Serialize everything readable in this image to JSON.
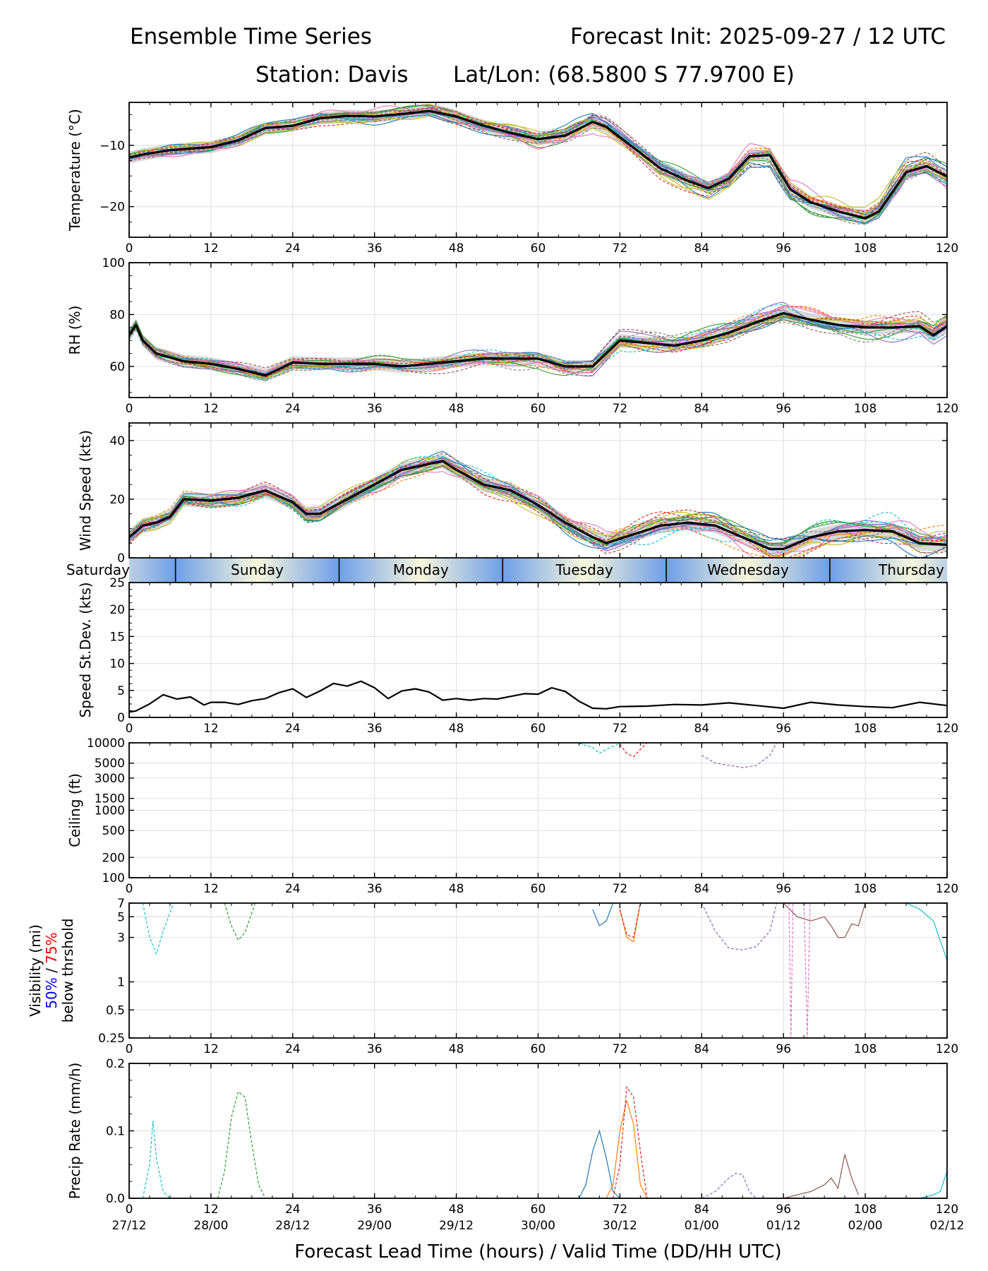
{
  "title": {
    "left": "Ensemble Time Series",
    "right": "Forecast Init: 2025-09-27 / 12 UTC",
    "station": "Station: Davis",
    "latlon": "Lat/Lon: (68.5800 S 77.9700 E)"
  },
  "colors": {
    "ensemble": [
      "#1f77b4",
      "#ff7f0e",
      "#2ca02c",
      "#d62728",
      "#9467bd",
      "#8c564b",
      "#e377c2",
      "#7f7f7f",
      "#bcbd22",
      "#17becf"
    ],
    "mean": "#000000",
    "spread": "#c8c8c8",
    "vis_p50": "#0000ff",
    "vis_p75": "#ff0000",
    "day_blue": "#6e9ee8",
    "day_cream": "#f7f6dc"
  },
  "shared_x": {
    "lim": [
      0,
      120
    ],
    "ticks": [
      0,
      12,
      24,
      36,
      48,
      60,
      72,
      84,
      96,
      108,
      120
    ],
    "tick_labels": [
      "0",
      "12",
      "24",
      "36",
      "48",
      "60",
      "72",
      "84",
      "96",
      "108",
      "120"
    ],
    "valid_time_labels": [
      "27/12",
      "28/00",
      "28/12",
      "29/00",
      "29/12",
      "30/00",
      "30/12",
      "01/00",
      "01/12",
      "02/00",
      "02/12"
    ],
    "xlabel": "Forecast Lead Time (hours) / Valid Time (DD/HH UTC)"
  },
  "day_band": {
    "days": [
      "Saturday",
      "Sunday",
      "Monday",
      "Tuesday",
      "Wednesday",
      "Thursday"
    ],
    "boundaries_hours": [
      6.8,
      30.8,
      54.8,
      78.8,
      102.8
    ]
  },
  "chart_data": [
    {
      "type": "line",
      "id": "temp",
      "ylabel": "Temperature (°C)",
      "ylim": [
        -25,
        -3
      ],
      "yticks": [
        -10,
        -20
      ],
      "ytick_labels": [
        "−10",
        "−20"
      ],
      "grid": true,
      "members": 20,
      "mean": {
        "x": [
          0,
          2,
          6,
          12,
          16,
          20,
          24,
          28,
          32,
          36,
          40,
          44,
          48,
          52,
          56,
          60,
          64,
          68,
          70,
          74,
          78,
          82,
          85,
          88,
          91,
          94,
          97,
          100,
          104,
          108,
          110,
          114,
          117,
          120
        ],
        "y": [
          -12,
          -11.5,
          -10.8,
          -10.3,
          -9.2,
          -7.2,
          -6.8,
          -5.6,
          -5.2,
          -5.3,
          -4.9,
          -4.4,
          -5.3,
          -6.8,
          -8.0,
          -9.0,
          -8.4,
          -6.2,
          -7.0,
          -10.4,
          -13.8,
          -15.8,
          -17.0,
          -15.4,
          -11.8,
          -11.6,
          -17.2,
          -19.3,
          -20.8,
          -21.9,
          -20.8,
          -14.4,
          -13.4,
          -15.1
        ]
      },
      "spread_width": 1.0
    },
    {
      "type": "line",
      "id": "rh",
      "ylabel": "RH (%)",
      "ylim": [
        48,
        100
      ],
      "yticks": [
        60,
        80,
        100
      ],
      "ytick_labels": [
        "60",
        "80",
        "100"
      ],
      "grid": true,
      "members": 20,
      "mean": {
        "x": [
          0,
          1,
          2,
          4,
          6,
          8,
          12,
          16,
          20,
          24,
          28,
          32,
          36,
          40,
          44,
          48,
          52,
          56,
          60,
          64,
          68,
          70,
          72,
          76,
          80,
          84,
          88,
          92,
          96,
          100,
          104,
          108,
          112,
          116,
          118,
          120
        ],
        "y": [
          72,
          76,
          70,
          65,
          63.5,
          62,
          61,
          59,
          56.5,
          61.5,
          61,
          61,
          61,
          60,
          61,
          62,
          63,
          63,
          63,
          60,
          60,
          65,
          70,
          69,
          68,
          70,
          73,
          77,
          80.5,
          78,
          76,
          75,
          75,
          75.5,
          72,
          75.5
        ]
      },
      "spread_width": 2.5
    },
    {
      "type": "line",
      "id": "wspd",
      "ylabel": "Wind Speed (kts)",
      "ylim": [
        0,
        46
      ],
      "yticks": [
        0,
        20,
        40
      ],
      "ytick_labels": [
        "0",
        "20",
        "40"
      ],
      "grid": true,
      "members": 20,
      "mean": {
        "x": [
          0,
          2,
          4,
          6,
          8,
          12,
          16,
          20,
          24,
          26,
          28,
          32,
          36,
          40,
          44,
          46,
          48,
          52,
          56,
          60,
          64,
          68,
          70,
          74,
          78,
          82,
          86,
          90,
          94,
          96,
          100,
          104,
          108,
          112,
          116,
          120
        ],
        "y": [
          7,
          11,
          12,
          14,
          20,
          19.5,
          20.5,
          23,
          19,
          15,
          15,
          20,
          25,
          30,
          32,
          33,
          30,
          25,
          23,
          18,
          12,
          7,
          5,
          8,
          11,
          12,
          11,
          7,
          3,
          3,
          7,
          9,
          9.5,
          9,
          5,
          4.5
        ]
      },
      "spread_width": 2.5
    },
    {
      "type": "line",
      "id": "sdev",
      "ylabel": "Speed St.Dev. (kts)",
      "ylim": [
        0,
        25
      ],
      "yticks": [
        0,
        5,
        10,
        15,
        20,
        25
      ],
      "ytick_labels": [
        "0",
        "5",
        "10",
        "15",
        "20",
        "25"
      ],
      "grid": true,
      "series": [
        {
          "name": "std",
          "x": [
            0,
            1,
            3,
            5,
            7,
            9,
            11,
            12,
            14,
            16,
            18,
            20,
            22,
            24,
            26,
            28,
            30,
            32,
            34,
            36,
            38,
            40,
            42,
            44,
            46,
            48,
            50,
            52,
            54,
            56,
            58,
            60,
            62,
            64,
            66,
            68,
            70,
            72,
            76,
            80,
            84,
            88,
            92,
            96,
            100,
            104,
            108,
            112,
            116,
            120
          ],
          "y": [
            1,
            1.2,
            2.5,
            4.2,
            3.4,
            3.8,
            2.3,
            2.8,
            2.8,
            2.4,
            3.1,
            3.5,
            4.6,
            5.3,
            3.7,
            4.9,
            6.3,
            5.8,
            6.7,
            5.5,
            3.5,
            4.9,
            5.3,
            4.7,
            3.2,
            3.5,
            3.2,
            3.5,
            3.4,
            3.9,
            4.4,
            4.3,
            5.5,
            4.8,
            3.0,
            1.7,
            1.6,
            2.0,
            2.1,
            2.4,
            2.3,
            2.7,
            2.2,
            1.7,
            2.8,
            2.3,
            2.0,
            1.8,
            2.8,
            2.2
          ]
        }
      ]
    },
    {
      "type": "line",
      "id": "ceil",
      "ylabel": "Ceiling (ft)",
      "yscale": "log",
      "ylim": [
        100,
        10000
      ],
      "yticks": [
        100,
        200,
        500,
        1000,
        1500,
        3000,
        5000,
        10000
      ],
      "ytick_labels": [
        "100",
        "200",
        "500",
        "1000",
        "1500",
        "3000",
        "5000",
        "10000"
      ],
      "grid": true,
      "segments": [
        {
          "x": [
            84,
            86,
            90,
            92,
            94,
            95
          ],
          "y": [
            6500,
            5000,
            4300,
            4600,
            6500,
            10000
          ],
          "dashed": true,
          "color": "#9467bd"
        },
        {
          "x": [
            72,
            73,
            74,
            75,
            76
          ],
          "y": [
            9500,
            7000,
            6200,
            8000,
            10000
          ],
          "dashed": true,
          "color": "#d62728"
        },
        {
          "x": [
            66,
            68,
            69,
            70,
            72
          ],
          "y": [
            9800,
            8500,
            7000,
            8000,
            9800
          ],
          "dashed": true,
          "color": "#17becf"
        }
      ]
    },
    {
      "type": "line",
      "id": "vis",
      "ylabel": "Visibility (mi)",
      "ylabel2_a": "50%",
      "ylabel2_sep": " / ",
      "ylabel2_b": "75%",
      "ylabel3": "below thrshold",
      "yscale": "log",
      "ylim": [
        0.25,
        7
      ],
      "yticks": [
        0.25,
        0.5,
        1,
        3,
        5,
        7
      ],
      "ytick_labels": [
        "0.25",
        "0.5",
        "1",
        "3",
        "5",
        "7"
      ],
      "grid": true,
      "segments": [
        {
          "x": [
            2,
            3,
            4,
            5,
            6.5
          ],
          "y": [
            7,
            3,
            2,
            3.5,
            7
          ],
          "dashed": true,
          "color": "#17becf"
        },
        {
          "x": [
            14,
            15,
            16,
            17,
            18.5
          ],
          "y": [
            7,
            4,
            2.8,
            3.4,
            7
          ],
          "dashed": true,
          "color": "#2ca02c"
        },
        {
          "x": [
            68,
            69,
            70,
            71
          ],
          "y": [
            6,
            4,
            4.5,
            7
          ],
          "dashed": false,
          "color": "#1f77b4"
        },
        {
          "x": [
            72,
            73,
            74,
            75
          ],
          "y": [
            6,
            3,
            2.7,
            7
          ],
          "dashed": false,
          "color": "#ff7f0e"
        },
        {
          "x": [
            72,
            73,
            74,
            75
          ],
          "y": [
            6,
            3.2,
            3,
            7
          ],
          "dashed": true,
          "color": "#d62728"
        },
        {
          "x": [
            84,
            86,
            88,
            90,
            92,
            94,
            95
          ],
          "y": [
            7,
            3.5,
            2.3,
            2.2,
            2.4,
            3.5,
            7
          ],
          "dashed": true,
          "color": "#9467bd"
        },
        {
          "x": [
            96,
            98,
            100,
            102,
            103,
            104,
            105,
            106,
            107,
            108
          ],
          "y": [
            7,
            5,
            4.5,
            5,
            4,
            3,
            3,
            4.2,
            4,
            7
          ],
          "dashed": false,
          "color": "#8c564b"
        },
        {
          "x": [
            96.8,
            97.1,
            97.4
          ],
          "y": [
            7,
            0.25,
            7
          ],
          "dashed": true,
          "color": "#e377c2"
        },
        {
          "x": [
            99,
            99.5,
            99.9
          ],
          "y": [
            7,
            0.25,
            7
          ],
          "dashed": true,
          "color": "#e377c2"
        },
        {
          "x": [
            114,
            116,
            118,
            120
          ],
          "y": [
            7,
            6,
            4.5,
            1.7
          ],
          "dashed": false,
          "color": "#17becf"
        }
      ]
    },
    {
      "type": "line",
      "id": "precip",
      "ylabel": "Precip Rate (mm/h)",
      "ylim": [
        0,
        0.2
      ],
      "yticks": [
        0,
        0.1,
        0.2
      ],
      "ytick_labels": [
        "0.0",
        "0.1",
        "0.2"
      ],
      "grid": true,
      "segments": [
        {
          "x": [
            2,
            3,
            3.5,
            4,
            5,
            6
          ],
          "y": [
            0,
            0.05,
            0.115,
            0.06,
            0.01,
            0
          ],
          "dashed": true,
          "color": "#17becf"
        },
        {
          "x": [
            13,
            14,
            15,
            16,
            17,
            18,
            19,
            20
          ],
          "y": [
            0,
            0.04,
            0.12,
            0.158,
            0.15,
            0.08,
            0.02,
            0
          ],
          "dashed": true,
          "color": "#2ca02c"
        },
        {
          "x": [
            66,
            67,
            68,
            69,
            70,
            71,
            72
          ],
          "y": [
            0,
            0.02,
            0.07,
            0.1,
            0.06,
            0.01,
            0
          ],
          "dashed": false,
          "color": "#1f77b4"
        },
        {
          "x": [
            70,
            71,
            72,
            73,
            74,
            75,
            76
          ],
          "y": [
            0,
            0.02,
            0.1,
            0.145,
            0.11,
            0.02,
            0
          ],
          "dashed": false,
          "color": "#ff7f0e"
        },
        {
          "x": [
            71,
            72,
            73,
            74,
            75,
            76
          ],
          "y": [
            0,
            0.05,
            0.165,
            0.15,
            0.07,
            0
          ],
          "dashed": true,
          "color": "#d62728"
        },
        {
          "x": [
            84,
            86,
            88,
            89,
            90,
            91,
            92
          ],
          "y": [
            0,
            0.01,
            0.03,
            0.037,
            0.035,
            0.01,
            0
          ],
          "dashed": true,
          "color": "#9467bd"
        },
        {
          "x": [
            96,
            98,
            100,
            102,
            103,
            104,
            105,
            106,
            107
          ],
          "y": [
            0,
            0.005,
            0.01,
            0.02,
            0.03,
            0.015,
            0.065,
            0.03,
            0.005
          ],
          "dashed": false,
          "color": "#8c564b"
        },
        {
          "x": [
            116,
            118,
            119,
            120
          ],
          "y": [
            0,
            0.005,
            0.01,
            0.04
          ],
          "dashed": false,
          "color": "#17becf"
        }
      ]
    }
  ]
}
